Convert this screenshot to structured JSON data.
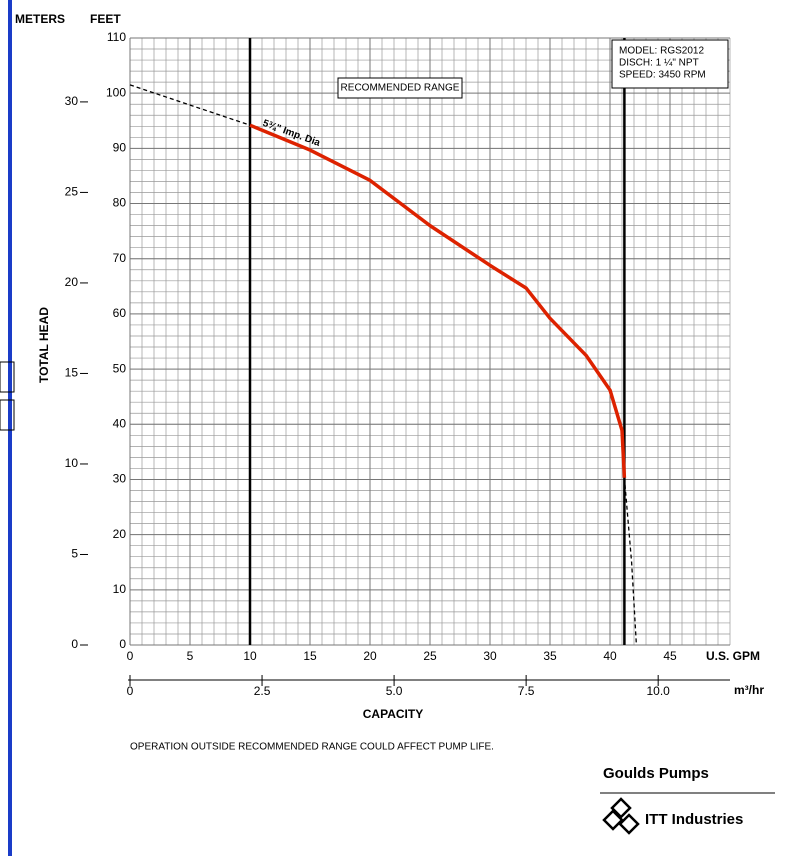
{
  "chart_data": {
    "type": "line",
    "y_unit": "FEET",
    "y2_unit": "METERS",
    "y_label": "TOTAL HEAD",
    "x_unit": "U.S. GPM",
    "x2_unit": "m³/hr",
    "x_label": "CAPACITY",
    "xlim": [
      0,
      50
    ],
    "xticks": [
      0,
      5,
      10,
      15,
      20,
      25,
      30,
      35,
      40,
      45
    ],
    "x2lim": [
      0,
      11.36
    ],
    "x2ticks": [
      0,
      2.5,
      {
        "value": 5,
        "label": "5.0"
      },
      7.5,
      {
        "value": 10,
        "label": "10.0"
      }
    ],
    "ylim": [
      0,
      110
    ],
    "yticks": [
      0,
      10,
      20,
      30,
      40,
      50,
      60,
      70,
      80,
      90,
      100,
      110
    ],
    "y2lim": [
      0,
      33.53
    ],
    "y2ticks": [
      0,
      5,
      10,
      15,
      20,
      25,
      30
    ],
    "grid": true,
    "series": [
      {
        "name": "5¾\" Imp. Dia",
        "color": "#dd2200",
        "line_style": "solid",
        "x": [
          10,
          15,
          20,
          25,
          30,
          33,
          35,
          38,
          40,
          41,
          41.2
        ],
        "values": [
          94.2,
          89.7,
          84.2,
          76,
          68.8,
          64.7,
          59.2,
          52.5,
          46.2,
          38.9,
          30.3
        ]
      },
      {
        "color": "#000000",
        "line_style": "dashed",
        "x": [
          0,
          10
        ],
        "values": [
          101.5,
          94.2
        ]
      },
      {
        "color": "#000000",
        "line_style": "dashed",
        "x": [
          41.2,
          41.8,
          42.2
        ],
        "values": [
          30.3,
          15,
          0
        ]
      }
    ],
    "recommended_range": {
      "label": "RECOMMENDED RANGE",
      "x": [
        10,
        41.2
      ]
    },
    "model_info": [
      "MODEL: RGS2012",
      "DISCH: 1 ¼\" NPT",
      "SPEED: 3450 RPM"
    ]
  },
  "footnote": "OPERATION OUTSIDE RECOMMENDED RANGE COULD AFFECT PUMP LIFE.",
  "brand": {
    "name": "Goulds Pumps",
    "parent": "ITT Industries"
  }
}
